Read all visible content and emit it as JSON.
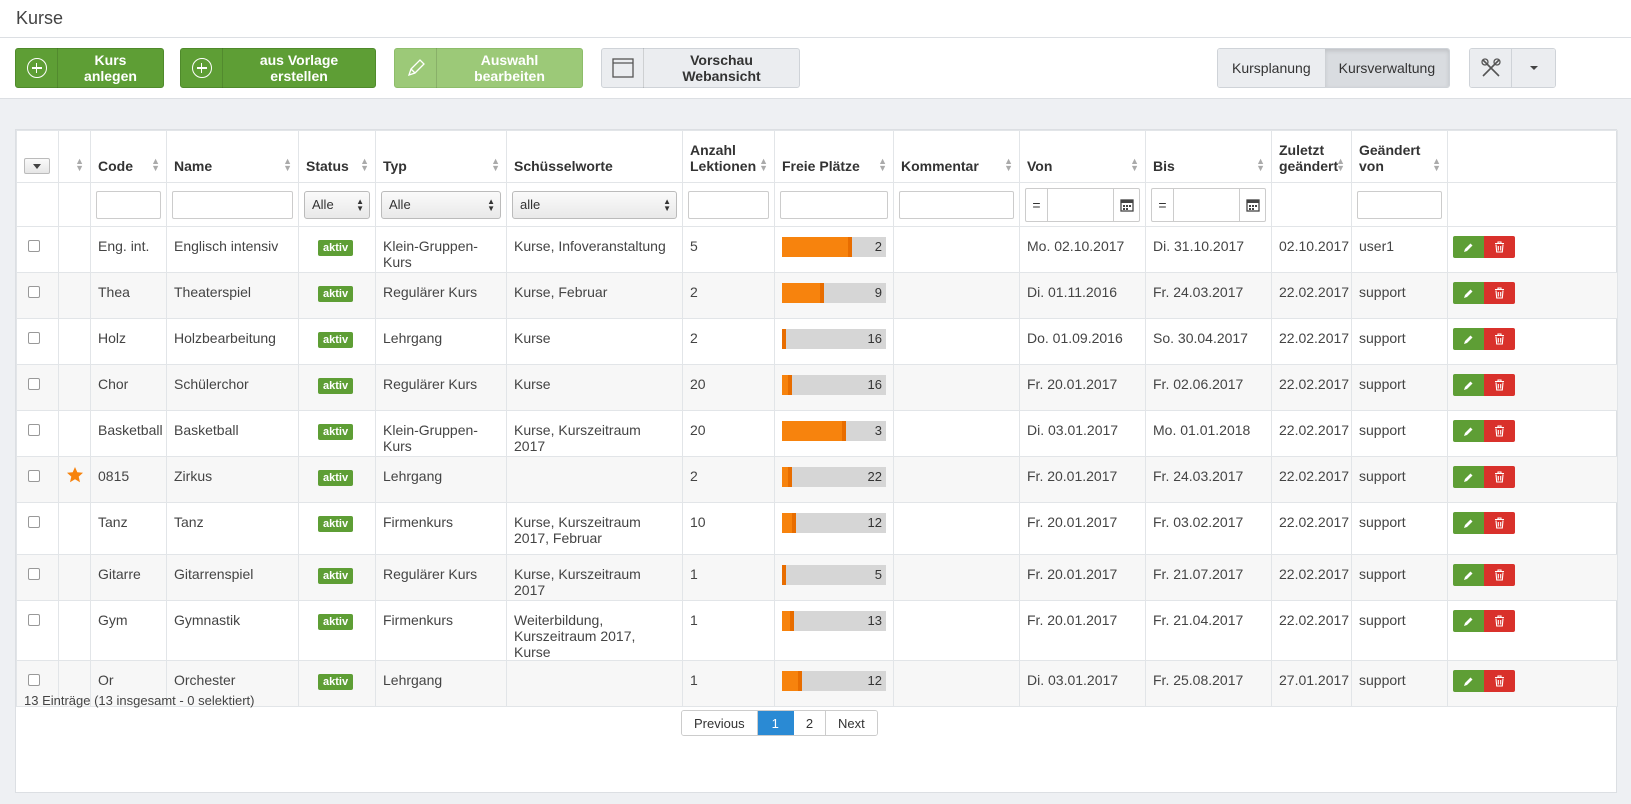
{
  "page": {
    "title": "Kurse"
  },
  "toolbar": {
    "create_label": "Kurs anlegen",
    "from_template_label": "aus Vorlage erstellen",
    "edit_selection_label": "Auswahl bearbeiten",
    "preview_label": "Vorschau Webansicht",
    "view_planning_label": "Kursplanung",
    "view_management_label": "Kursverwaltung"
  },
  "columns": {
    "code": "Code",
    "name": "Name",
    "status": "Status",
    "typ": "Typ",
    "keywords": "Schüsselworte",
    "lessons_1": "Anzahl",
    "lessons_2": "Lektionen",
    "free": "Freie Plätze",
    "comment": "Kommentar",
    "from": "Von",
    "to": "Bis",
    "changed_1": "Zuletzt",
    "changed_2": "geändert",
    "changed_by_1": "Geändert",
    "changed_by_2": "von"
  },
  "filters": {
    "status": "Alle",
    "typ": "Alle",
    "keywords": "alle",
    "date_op": "="
  },
  "colors": {
    "accent_green": "#5e9e35",
    "bar_orange": "#f7830d",
    "delete_red": "#d9312b",
    "pager_blue": "#2a8ad4",
    "star": "#f7830d"
  },
  "rows": [
    {
      "code": "Eng. int.",
      "name": "Englisch intensiv",
      "status": "aktiv",
      "typ": "Klein-Gruppen-Kurs",
      "keywords": "Kurse, Infoveranstaltung",
      "lessons": "5",
      "free": "2",
      "fill": 0.67,
      "from": "Mo. 02.10.2017",
      "to": "Di. 31.10.2017",
      "changed": "02.10.2017",
      "by": "user1",
      "star": false
    },
    {
      "code": "Thea",
      "name": "Theaterspiel",
      "status": "aktiv",
      "typ": "Regulärer Kurs",
      "keywords": "Kurse, Februar",
      "lessons": "2",
      "free": "9",
      "fill": 0.4,
      "from": "Di. 01.11.2016",
      "to": "Fr. 24.03.2017",
      "changed": "22.02.2017",
      "by": "support",
      "star": false
    },
    {
      "code": "Holz",
      "name": "Holzbearbeitung",
      "status": "aktiv",
      "typ": "Lehrgang",
      "keywords": "Kurse",
      "lessons": "2",
      "free": "16",
      "fill": 0.03,
      "from": "Do. 01.09.2016",
      "to": "So. 30.04.2017",
      "changed": "22.02.2017",
      "by": "support",
      "star": false
    },
    {
      "code": "Chor",
      "name": "Schülerchor",
      "status": "aktiv",
      "typ": "Regulärer Kurs",
      "keywords": "Kurse",
      "lessons": "20",
      "free": "16",
      "fill": 0.1,
      "from": "Fr. 20.01.2017",
      "to": "Fr. 02.06.2017",
      "changed": "22.02.2017",
      "by": "support",
      "star": false
    },
    {
      "code": "Basketball",
      "name": "Basketball",
      "status": "aktiv",
      "typ": "Klein-Gruppen-Kurs",
      "keywords": "Kurse, Kurszeitraum 2017",
      "lessons": "20",
      "free": "3",
      "fill": 0.62,
      "from": "Di. 03.01.2017",
      "to": "Mo. 01.01.2018",
      "changed": "22.02.2017",
      "by": "support",
      "star": false
    },
    {
      "code": "0815",
      "name": "Zirkus",
      "status": "aktiv",
      "typ": "Lehrgang",
      "keywords": "",
      "lessons": "2",
      "free": "22",
      "fill": 0.1,
      "from": "Fr. 20.01.2017",
      "to": "Fr. 24.03.2017",
      "changed": "22.02.2017",
      "by": "support",
      "star": true
    },
    {
      "code": "Tanz",
      "name": "Tanz",
      "status": "aktiv",
      "typ": "Firmenkurs",
      "keywords": "Kurse, Kurszeitraum 2017, Februar",
      "lessons": "10",
      "free": "12",
      "fill": 0.13,
      "from": "Fr. 20.01.2017",
      "to": "Fr. 03.02.2017",
      "changed": "22.02.2017",
      "by": "support",
      "star": false
    },
    {
      "code": "Gitarre",
      "name": "Gitarrenspiel",
      "status": "aktiv",
      "typ": "Regulärer Kurs",
      "keywords": "Kurse, Kurszeitraum 2017",
      "lessons": "1",
      "free": "5",
      "fill": 0.03,
      "from": "Fr. 20.01.2017",
      "to": "Fr. 21.07.2017",
      "changed": "22.02.2017",
      "by": "support",
      "star": false
    },
    {
      "code": "Gym",
      "name": "Gymnastik",
      "status": "aktiv",
      "typ": "Firmenkurs",
      "keywords": "Weiterbildung, Kurszeitraum 2017, Kurse",
      "lessons": "1",
      "free": "13",
      "fill": 0.12,
      "from": "Fr. 20.01.2017",
      "to": "Fr. 21.04.2017",
      "changed": "22.02.2017",
      "by": "support",
      "star": false
    },
    {
      "code": "Or",
      "name": "Orchester",
      "status": "aktiv",
      "typ": "Lehrgang",
      "keywords": "",
      "lessons": "1",
      "free": "12",
      "fill": 0.19,
      "from": "Di. 03.01.2017",
      "to": "Fr. 25.08.2017",
      "changed": "27.01.2017",
      "by": "support",
      "star": false
    }
  ],
  "footer": {
    "count": "13 Einträge (13 insgesamt - 0 selektiert)",
    "prev": "Previous",
    "page1": "1",
    "page2": "2",
    "next": "Next"
  }
}
